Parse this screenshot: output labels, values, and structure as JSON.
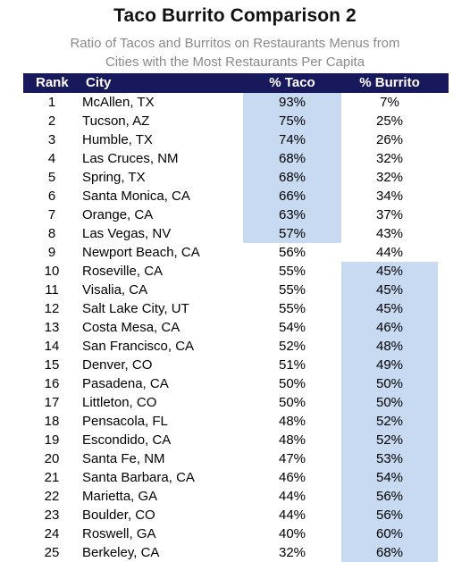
{
  "colors": {
    "header_bg": "#18185c",
    "highlight": "#c8d9f2",
    "subtitle": "#8a8a8a"
  },
  "chart_data": {
    "type": "table",
    "title": "Taco Burrito Comparison 2",
    "subtitle": "Ratio of Tacos and Burritos on Restaurants Menus from Cities with the Most Restaurants Per Capita",
    "subtitle_line1": "Ratio of Tacos and Burritos on Restaurants Menus from",
    "subtitle_line2": "Cities with the Most Restaurants Per Capita",
    "columns": [
      "Rank",
      "City",
      "% Taco",
      "% Burrito"
    ],
    "rows": [
      {
        "rank": "1",
        "city": "McAllen, TX",
        "taco": "93%",
        "burrito": "7%",
        "taco_highlight": true,
        "burrito_highlight": false
      },
      {
        "rank": "2",
        "city": "Tucson, AZ",
        "taco": "75%",
        "burrito": "25%",
        "taco_highlight": true,
        "burrito_highlight": false
      },
      {
        "rank": "3",
        "city": "Humble, TX",
        "taco": "74%",
        "burrito": "26%",
        "taco_highlight": true,
        "burrito_highlight": false
      },
      {
        "rank": "4",
        "city": "Las Cruces, NM",
        "taco": "68%",
        "burrito": "32%",
        "taco_highlight": true,
        "burrito_highlight": false
      },
      {
        "rank": "5",
        "city": "Spring, TX",
        "taco": "68%",
        "burrito": "32%",
        "taco_highlight": true,
        "burrito_highlight": false
      },
      {
        "rank": "6",
        "city": "Santa Monica, CA",
        "taco": "66%",
        "burrito": "34%",
        "taco_highlight": true,
        "burrito_highlight": false
      },
      {
        "rank": "7",
        "city": "Orange, CA",
        "taco": "63%",
        "burrito": "37%",
        "taco_highlight": true,
        "burrito_highlight": false
      },
      {
        "rank": "8",
        "city": "Las Vegas, NV",
        "taco": "57%",
        "burrito": "43%",
        "taco_highlight": true,
        "burrito_highlight": false
      },
      {
        "rank": "9",
        "city": "Newport Beach, CA",
        "taco": "56%",
        "burrito": "44%",
        "taco_highlight": false,
        "burrito_highlight": false
      },
      {
        "rank": "10",
        "city": "Roseville, CA",
        "taco": "55%",
        "burrito": "45%",
        "taco_highlight": false,
        "burrito_highlight": true
      },
      {
        "rank": "11",
        "city": "Visalia, CA",
        "taco": "55%",
        "burrito": "45%",
        "taco_highlight": false,
        "burrito_highlight": true
      },
      {
        "rank": "12",
        "city": "Salt Lake City, UT",
        "taco": "55%",
        "burrito": "45%",
        "taco_highlight": false,
        "burrito_highlight": true
      },
      {
        "rank": "13",
        "city": "Costa Mesa, CA",
        "taco": "54%",
        "burrito": "46%",
        "taco_highlight": false,
        "burrito_highlight": true
      },
      {
        "rank": "14",
        "city": "San Francisco, CA",
        "taco": "52%",
        "burrito": "48%",
        "taco_highlight": false,
        "burrito_highlight": true
      },
      {
        "rank": "15",
        "city": "Denver, CO",
        "taco": "51%",
        "burrito": "49%",
        "taco_highlight": false,
        "burrito_highlight": true
      },
      {
        "rank": "16",
        "city": "Pasadena, CA",
        "taco": "50%",
        "burrito": "50%",
        "taco_highlight": false,
        "burrito_highlight": true
      },
      {
        "rank": "17",
        "city": "Littleton, CO",
        "taco": "50%",
        "burrito": "50%",
        "taco_highlight": false,
        "burrito_highlight": true
      },
      {
        "rank": "18",
        "city": "Pensacola, FL",
        "taco": "48%",
        "burrito": "52%",
        "taco_highlight": false,
        "burrito_highlight": true
      },
      {
        "rank": "19",
        "city": "Escondido, CA",
        "taco": "48%",
        "burrito": "52%",
        "taco_highlight": false,
        "burrito_highlight": true
      },
      {
        "rank": "20",
        "city": "Santa Fe, NM",
        "taco": "47%",
        "burrito": "53%",
        "taco_highlight": false,
        "burrito_highlight": true
      },
      {
        "rank": "21",
        "city": "Santa Barbara, CA",
        "taco": "46%",
        "burrito": "54%",
        "taco_highlight": false,
        "burrito_highlight": true
      },
      {
        "rank": "22",
        "city": "Marietta, GA",
        "taco": "44%",
        "burrito": "56%",
        "taco_highlight": false,
        "burrito_highlight": true
      },
      {
        "rank": "23",
        "city": "Boulder, CO",
        "taco": "44%",
        "burrito": "56%",
        "taco_highlight": false,
        "burrito_highlight": true
      },
      {
        "rank": "24",
        "city": "Roswell, GA",
        "taco": "40%",
        "burrito": "60%",
        "taco_highlight": false,
        "burrito_highlight": true
      },
      {
        "rank": "25",
        "city": "Berkeley, CA",
        "taco": "32%",
        "burrito": "68%",
        "taco_highlight": false,
        "burrito_highlight": true
      }
    ]
  }
}
